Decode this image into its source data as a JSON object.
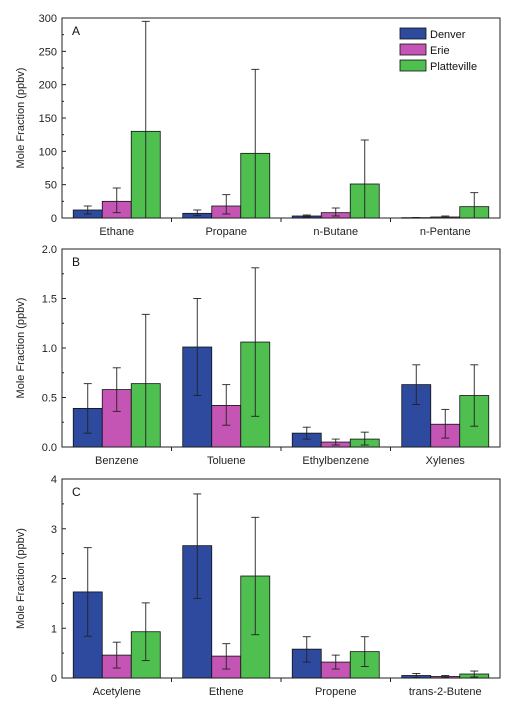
{
  "legend": [
    {
      "name": "Denver",
      "color": "#2e4a9e"
    },
    {
      "name": "Erie",
      "color": "#c455b4"
    },
    {
      "name": "Platteville",
      "color": "#4fbf4f"
    }
  ],
  "chart_data": [
    {
      "type": "bar",
      "panel": "A",
      "ylabel": "Mole Fraction (ppbv)",
      "ylim": [
        0,
        300
      ],
      "yticks": [
        "0",
        "50",
        "100",
        "150",
        "200",
        "250",
        "300"
      ],
      "categories": [
        "Ethane",
        "Propane",
        "n-Butane",
        "n-Pentane"
      ],
      "series": [
        {
          "name": "Denver",
          "values": [
            12,
            7,
            3,
            0.5
          ],
          "err_low": [
            6,
            3.5,
            1.5,
            0.3
          ],
          "err_high": [
            18,
            12,
            4.5,
            0.8
          ]
        },
        {
          "name": "Erie",
          "values": [
            25,
            18,
            8,
            1.5
          ],
          "err_low": [
            8,
            6,
            3,
            0.5
          ],
          "err_high": [
            45,
            35,
            15,
            3
          ]
        },
        {
          "name": "Platteville",
          "values": [
            130,
            97,
            51,
            17
          ],
          "err_low": [
            0,
            0,
            0,
            0
          ],
          "err_high": [
            295,
            223,
            117,
            38
          ]
        }
      ]
    },
    {
      "type": "bar",
      "panel": "B",
      "ylabel": "Mole Fraction (ppbv)",
      "ylim": [
        0,
        2.0
      ],
      "yticks": [
        "0.0",
        "0.5",
        "1.0",
        "1.5",
        "2.0"
      ],
      "categories": [
        "Benzene",
        "Toluene",
        "Ethylbenzene",
        "Xylenes"
      ],
      "series": [
        {
          "name": "Denver",
          "values": [
            0.39,
            1.01,
            0.14,
            0.63
          ],
          "err_low": [
            0.14,
            0.52,
            0.08,
            0.43
          ],
          "err_high": [
            0.64,
            1.5,
            0.2,
            0.83
          ]
        },
        {
          "name": "Erie",
          "values": [
            0.58,
            0.42,
            0.05,
            0.23
          ],
          "err_low": [
            0.36,
            0.22,
            0.02,
            0.09
          ],
          "err_high": [
            0.8,
            0.63,
            0.08,
            0.38
          ]
        },
        {
          "name": "Platteville",
          "values": [
            0.64,
            1.06,
            0.08,
            0.52
          ],
          "err_low": [
            0.0,
            0.31,
            0.02,
            0.21
          ],
          "err_high": [
            1.34,
            1.81,
            0.15,
            0.83
          ]
        }
      ]
    },
    {
      "type": "bar",
      "panel": "C",
      "ylabel": "Mole Fraction (ppbv)",
      "ylim": [
        0,
        4
      ],
      "yticks": [
        "0",
        "1",
        "2",
        "3",
        "4"
      ],
      "categories": [
        "Acetylene",
        "Ethene",
        "Propene",
        "trans-2-Butene"
      ],
      "series": [
        {
          "name": "Denver",
          "values": [
            1.73,
            2.66,
            0.58,
            0.05
          ],
          "err_low": [
            0.84,
            1.6,
            0.32,
            0.01
          ],
          "err_high": [
            2.62,
            3.7,
            0.83,
            0.09
          ]
        },
        {
          "name": "Erie",
          "values": [
            0.46,
            0.44,
            0.32,
            0.03
          ],
          "err_low": [
            0.2,
            0.18,
            0.18,
            0.01
          ],
          "err_high": [
            0.72,
            0.69,
            0.46,
            0.05
          ]
        },
        {
          "name": "Platteville",
          "values": [
            0.93,
            2.05,
            0.53,
            0.08
          ],
          "err_low": [
            0.35,
            0.87,
            0.23,
            0.02
          ],
          "err_high": [
            1.51,
            3.23,
            0.83,
            0.14
          ]
        }
      ]
    }
  ]
}
